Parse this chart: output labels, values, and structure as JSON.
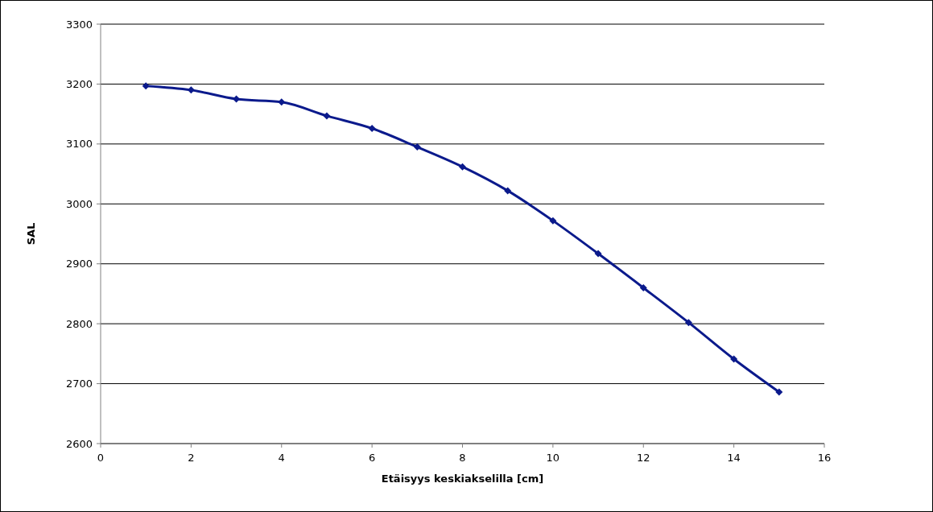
{
  "chart_data": {
    "type": "line",
    "xlabel": "Etäisyys keskiakselilla [cm]",
    "ylabel": "SAL",
    "x": [
      1,
      2,
      3,
      4,
      5,
      6,
      7,
      8,
      9,
      10,
      11,
      12,
      13,
      14,
      15
    ],
    "series": [
      {
        "color": "#0b1a8c",
        "values": [
          3197,
          3190,
          3175,
          3170,
          3147,
          3126,
          3095,
          3062,
          3022,
          2972,
          2917,
          2860,
          2802,
          2741,
          2686
        ]
      }
    ],
    "xlim": [
      0,
      16
    ],
    "xticks": [
      0,
      2,
      4,
      6,
      8,
      10,
      12,
      14,
      16
    ],
    "ylim": [
      2600,
      3300
    ],
    "yticks": [
      2600,
      2700,
      2800,
      2900,
      3000,
      3100,
      3200,
      3300
    ],
    "grid": "y",
    "marker": "diamond",
    "line_style": "solid"
  }
}
